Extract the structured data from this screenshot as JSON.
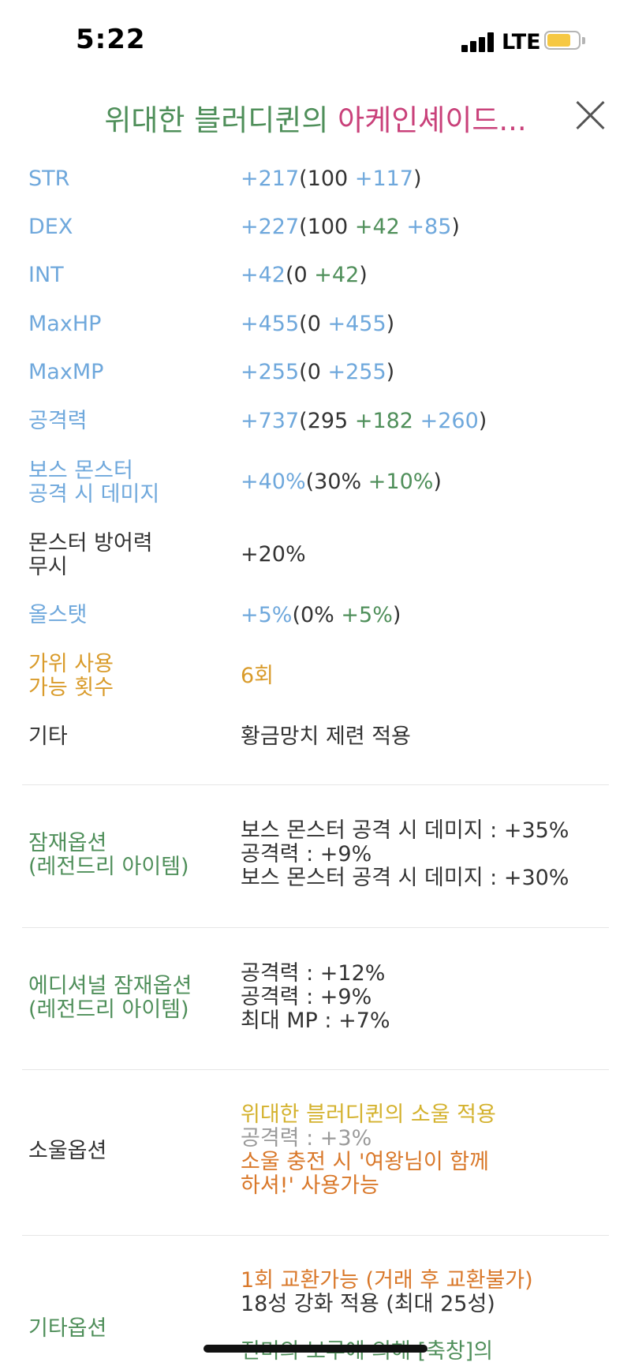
{
  "status": {
    "time": "5:22",
    "network": "LTE"
  },
  "header": {
    "title_green": "위대한 블러디퀸의 ",
    "title_pink": "아케인셰이드...",
    "close_icon": "close-icon"
  },
  "stats": [
    {
      "label": "STR",
      "total": "+217",
      "open": "(100 ",
      "parts": [
        "+117"
      ],
      "close": ")"
    },
    {
      "label": "DEX",
      "total": "+227",
      "open": "(100 ",
      "green": "+42",
      "parts": [
        "+85"
      ],
      "close": ")"
    },
    {
      "label": "INT",
      "total": "+42",
      "open": "(0 ",
      "green": "+42",
      "close": ")"
    },
    {
      "label": "MaxHP",
      "total": "+455",
      "open": "(0 ",
      "parts": [
        "+455"
      ],
      "close": ")"
    },
    {
      "label": "MaxMP",
      "total": "+255",
      "open": "(0 ",
      "parts": [
        "+255"
      ],
      "close": ")"
    },
    {
      "label": "공격력",
      "total": "+737",
      "open": "(295 ",
      "green": "+182",
      "parts": [
        "+260"
      ],
      "close": ")"
    }
  ],
  "boss": {
    "label1": "보스 몬스터",
    "label2": "공격 시 데미지",
    "total": "+40%",
    "open": "(30% ",
    "green": "+10%",
    "close": ")"
  },
  "ignore_def": {
    "label1": "몬스터 방어력",
    "label2": "무시",
    "value": "+20%"
  },
  "allstat": {
    "label": "올스탯",
    "total": "+5%",
    "open": "(0% ",
    "green": "+5%",
    "close": ")"
  },
  "scissors": {
    "label1": "가위 사용",
    "label2": "가능 횟수",
    "value": "6회"
  },
  "etc": {
    "label": "기타",
    "value": "황금망치 제련 적용"
  },
  "potential": {
    "label1": "잠재옵션",
    "label2": "(레전드리 아이템)",
    "lines": [
      "보스 몬스터 공격 시 데미지 : +35%",
      "공격력 : +9%",
      "보스 몬스터 공격 시 데미지 : +30%"
    ]
  },
  "additional": {
    "label1": "에디셔널 잠재옵션",
    "label2": "(레전드리 아이템)",
    "lines": [
      "공격력 : +12%",
      "공격력 : +9%",
      "최대 MP : +7%"
    ]
  },
  "soul": {
    "label": "소울옵션",
    "name": "위대한 블러디퀸의 소울 적용",
    "stat": "공격력 : +3%",
    "charge1": "소울 충전 시 '여왕님이 함께",
    "charge2": "하셔!' 사용가능"
  },
  "other": {
    "label": "기타옵션",
    "line1": "1회 교환가능 (거래 후 교환불가)",
    "line2": "18성 강화 적용 (최대 25성)",
    "line3": "진미의 보루에 의해 [축창]의"
  }
}
